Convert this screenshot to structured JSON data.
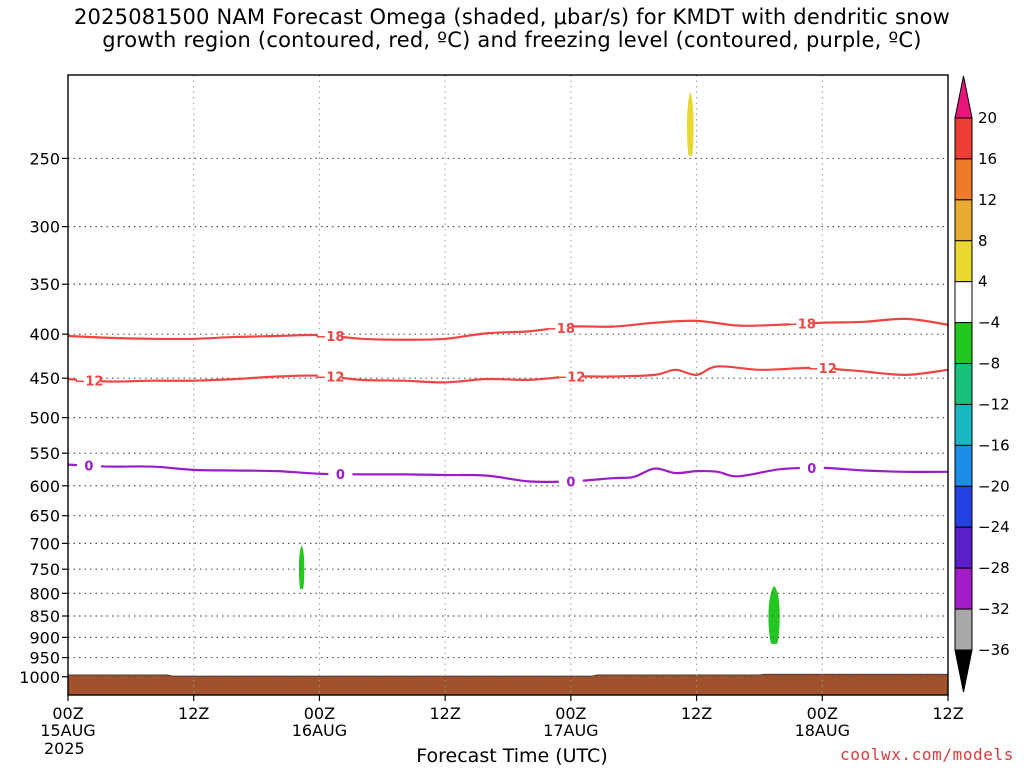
{
  "title_line1": "2025081500 NAM Forecast Omega (shaded, μbar/s) for KMDT with dendritic snow",
  "title_line2": "growth region (contoured, red, ºC) and freezing level (contoured, purple, ºC)",
  "year": "2025",
  "credit": "coolwx.com/models",
  "chart_data": {
    "type": "time-height contour",
    "xlabel": "Forecast Time (UTC)",
    "x_ticks": [
      {
        "hour": 0,
        "label": "00Z",
        "sub": "15AUG"
      },
      {
        "hour": 12,
        "label": "12Z",
        "sub": ""
      },
      {
        "hour": 24,
        "label": "00Z",
        "sub": "16AUG"
      },
      {
        "hour": 36,
        "label": "12Z",
        "sub": ""
      },
      {
        "hour": 48,
        "label": "00Z",
        "sub": "17AUG"
      },
      {
        "hour": 60,
        "label": "12Z",
        "sub": ""
      },
      {
        "hour": 72,
        "label": "00Z",
        "sub": "18AUG"
      },
      {
        "hour": 84,
        "label": "12Z",
        "sub": ""
      }
    ],
    "xlim": [
      0,
      84
    ],
    "y_scale": "log pressure, inverted",
    "ylim": [
      1050,
      200
    ],
    "y_ticks": [
      250,
      300,
      350,
      400,
      450,
      500,
      550,
      600,
      650,
      700,
      750,
      800,
      850,
      900,
      950,
      1000
    ],
    "grid": true,
    "colorbar": {
      "labels": [
        "20",
        "16",
        "12",
        "8",
        "4",
        "−4",
        "−8",
        "−12",
        "−16",
        "−20",
        "−24",
        "−28",
        "−32",
        "−36"
      ],
      "colors": [
        "#e8157a",
        "#ef3e36",
        "#ef7a2a",
        "#e8aa30",
        "#e8d830",
        "#ffffff",
        "#22c71f",
        "#19c07a",
        "#17b8c0",
        "#1c8ee8",
        "#2440e0",
        "#5a1fc8",
        "#a21dc8",
        "#a8a8a8",
        "#000000"
      ]
    },
    "contours": [
      {
        "name": "-18",
        "color": "#ef4444",
        "points": [
          [
            0,
            402
          ],
          [
            4,
            404
          ],
          [
            8,
            405
          ],
          [
            12,
            405
          ],
          [
            16,
            403
          ],
          [
            20,
            402
          ],
          [
            24,
            401
          ],
          [
            28,
            405
          ],
          [
            32,
            406
          ],
          [
            36,
            405
          ],
          [
            40,
            399
          ],
          [
            44,
            397
          ],
          [
            48,
            392
          ],
          [
            52,
            392
          ],
          [
            56,
            388
          ],
          [
            60,
            386
          ],
          [
            64,
            391
          ],
          [
            68,
            390
          ],
          [
            72,
            388
          ],
          [
            76,
            387
          ],
          [
            80,
            384
          ],
          [
            84,
            390
          ]
        ],
        "labels": [
          {
            "h": 25,
            "text": "−18"
          },
          {
            "h": 47,
            "text": "−18"
          },
          {
            "h": 70,
            "text": "−18"
          }
        ]
      },
      {
        "name": "-12",
        "color": "#ef4444",
        "points": [
          [
            0,
            451
          ],
          [
            4,
            454
          ],
          [
            8,
            453
          ],
          [
            12,
            453
          ],
          [
            16,
            451
          ],
          [
            20,
            448
          ],
          [
            24,
            447
          ],
          [
            28,
            452
          ],
          [
            32,
            453
          ],
          [
            36,
            455
          ],
          [
            40,
            451
          ],
          [
            44,
            452
          ],
          [
            48,
            448
          ],
          [
            52,
            448
          ],
          [
            56,
            446
          ],
          [
            58,
            440
          ],
          [
            60,
            446
          ],
          [
            62,
            436
          ],
          [
            66,
            440
          ],
          [
            70,
            438
          ],
          [
            72,
            438
          ],
          [
            76,
            442
          ],
          [
            80,
            446
          ],
          [
            84,
            440
          ]
        ],
        "labels": [
          {
            "h": 2,
            "text": "−12"
          },
          {
            "h": 25,
            "text": "−12"
          },
          {
            "h": 48,
            "text": "−12"
          },
          {
            "h": 72,
            "text": "−12"
          }
        ]
      },
      {
        "name": "0",
        "color": "#9b1ccb",
        "points": [
          [
            0,
            567
          ],
          [
            4,
            570
          ],
          [
            8,
            570
          ],
          [
            12,
            575
          ],
          [
            16,
            576
          ],
          [
            20,
            577
          ],
          [
            24,
            581
          ],
          [
            28,
            582
          ],
          [
            32,
            582
          ],
          [
            36,
            583
          ],
          [
            40,
            584
          ],
          [
            44,
            593
          ],
          [
            48,
            593
          ],
          [
            52,
            588
          ],
          [
            54,
            586
          ],
          [
            56,
            573
          ],
          [
            58,
            580
          ],
          [
            60,
            577
          ],
          [
            62,
            578
          ],
          [
            64,
            585
          ],
          [
            68,
            574
          ],
          [
            72,
            572
          ],
          [
            76,
            576
          ],
          [
            80,
            578
          ],
          [
            84,
            578
          ]
        ],
        "labels": [
          {
            "h": 2,
            "text": "0"
          },
          {
            "h": 26,
            "text": "0"
          },
          {
            "h": 48,
            "text": "0"
          },
          {
            "h": 71,
            "text": "0"
          }
        ]
      }
    ],
    "shaded_regions": [
      {
        "name": "omega 4 to 8",
        "color": "#e8d830",
        "h_center": 59.4,
        "half_width": 0.25,
        "p_top": 210,
        "p_bottom": 248
      },
      {
        "name": "omega -4 to -8 (16AUG)",
        "color": "#22c71f",
        "h_center": 22.3,
        "half_width": 0.2,
        "p_top": 705,
        "p_bottom": 790
      },
      {
        "name": "omega -4 to -8 (18AUG)",
        "color": "#22c71f",
        "h_center": 67.4,
        "half_width": 0.45,
        "p_top": 785,
        "p_bottom": 915
      }
    ],
    "terrain": {
      "name": "surface",
      "color": "#a0522d",
      "surface_pressure": [
        [
          0,
          995
        ],
        [
          9.5,
          995
        ],
        [
          10,
          998
        ],
        [
          50,
          998
        ],
        [
          50.5,
          995
        ],
        [
          66,
          995
        ],
        [
          66.5,
          993
        ],
        [
          84,
          993
        ]
      ]
    }
  }
}
